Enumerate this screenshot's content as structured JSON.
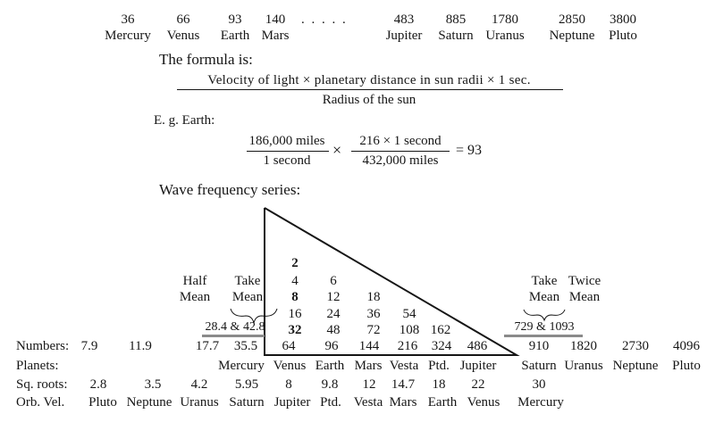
{
  "top_values": [
    {
      "value": "36",
      "planet": "Mercury"
    },
    {
      "value": "66",
      "planet": "Venus"
    },
    {
      "value": "93",
      "planet": "Earth"
    },
    {
      "value": "140",
      "planet": "Mars"
    },
    {
      "value": "483",
      "planet": "Jupiter"
    },
    {
      "value": "885",
      "planet": "Saturn"
    },
    {
      "value": "1780",
      "planet": "Uranus"
    },
    {
      "value": "2850",
      "planet": "Neptune"
    },
    {
      "value": "3800",
      "planet": "Pluto"
    }
  ],
  "dots": ". . .   . .",
  "formula": {
    "heading": "The formula is:",
    "numerator": "Velocity of light × planetary distance in sun radii × 1 sec.",
    "denominator": "Radius of the sun"
  },
  "example": {
    "label": "E. g. Earth:",
    "frac1_num": "186,000 miles",
    "frac1_den": "1 second",
    "times": "×",
    "frac2_num": "216 × 1 second",
    "frac2_den": "432,000 miles",
    "result": "= 93"
  },
  "wave": {
    "heading": "Wave frequency series:",
    "triangle": [
      [
        "2"
      ],
      [
        "4",
        "6"
      ],
      [
        "8",
        "12",
        "18"
      ],
      [
        "16",
        "24",
        "36",
        "54"
      ],
      [
        "32",
        "48",
        "72",
        "108",
        "162"
      ],
      [
        "64",
        "96",
        "144",
        "216",
        "324",
        "486"
      ]
    ],
    "left_labels": {
      "half": "Half",
      "half_mean": "Mean",
      "take": "Take",
      "take_mean": "Mean"
    },
    "left_pair": "28.4 & 42.8",
    "right_labels": {
      "take": "Take",
      "take_mean": "Mean",
      "twice": "Twice",
      "twice_mean": "Mean"
    },
    "right_pair": "729 & 1093"
  },
  "rows": {
    "numbers_label": "Numbers:",
    "numbers_left": [
      "7.9",
      "11.9",
      "17.7",
      "35.5"
    ],
    "numbers_right": [
      "910",
      "1820",
      "2730",
      "4096"
    ],
    "planets_label": "Planets:",
    "planets": [
      "Mercury",
      "Venus",
      "Earth",
      "Mars",
      "Vesta",
      "Ptd.",
      "Jupiter",
      "Saturn",
      "Uranus",
      "Neptune",
      "Pluto"
    ],
    "sqroots_label": "Sq. roots:",
    "sqroots": [
      "2.8",
      "3.5",
      "4.2",
      "5.95",
      "8",
      "9.8",
      "12",
      "14.7",
      "18",
      "22",
      "30"
    ],
    "orbvel_label": "Orb. Vel.",
    "orbvel": [
      "Pluto",
      "Neptune",
      "Uranus",
      "Saturn",
      "Jupiter",
      "Ptd.",
      "Vesta",
      "Mars",
      "Earth",
      "Venus",
      "Mercury"
    ]
  }
}
